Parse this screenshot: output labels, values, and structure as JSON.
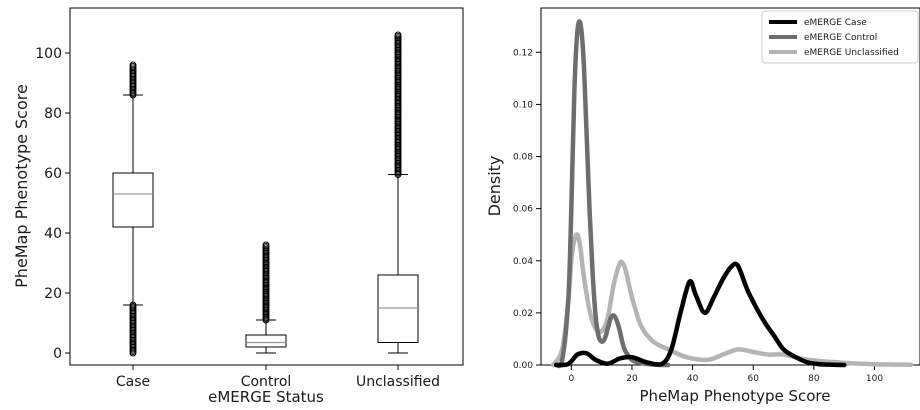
{
  "chart_data": [
    {
      "type": "box",
      "xlabel": "eMERGE Status",
      "ylabel": "PheMap Phenotype Score",
      "categories": [
        "Case",
        "Control",
        "Unclassified"
      ],
      "ylim": [
        -4,
        115
      ],
      "yticks": [
        0,
        20,
        40,
        60,
        80,
        100
      ],
      "boxes": [
        {
          "name": "Case",
          "whislo": 16,
          "q1": 42,
          "med": 53,
          "q3": 60,
          "whishi": 86,
          "fliers_low_range": [
            0,
            16
          ],
          "fliers_high_range": [
            86,
            96
          ]
        },
        {
          "name": "Control",
          "whislo": 0,
          "q1": 2,
          "med": 3.5,
          "q3": 6,
          "whishi": 11,
          "fliers_low_range": null,
          "fliers_high_range": [
            11,
            36
          ]
        },
        {
          "name": "Unclassified",
          "whislo": 0,
          "q1": 3.5,
          "med": 15,
          "q3": 26,
          "whishi": 59.5,
          "fliers_low_range": null,
          "fliers_high_range": [
            59.5,
            106
          ]
        }
      ]
    },
    {
      "type": "line",
      "xlabel": "PheMap Phenotype Score",
      "ylabel": "Density",
      "xlim": [
        -10,
        115
      ],
      "ylim": [
        0,
        0.137
      ],
      "xticks": [
        0,
        20,
        40,
        60,
        80,
        100
      ],
      "yticks": [
        0.0,
        0.02,
        0.04,
        0.06,
        0.08,
        0.1,
        0.12
      ],
      "legend_position": "top-right",
      "series": [
        {
          "name": "eMERGE Case",
          "color": "#000000",
          "x": [
            -5,
            -1,
            2,
            5,
            8,
            12,
            16,
            20,
            25,
            30,
            33,
            36,
            39,
            41,
            44,
            47,
            50,
            53,
            55,
            58,
            61,
            64,
            67,
            70,
            74,
            78,
            82,
            86,
            90
          ],
          "y": [
            0.0,
            0.0004,
            0.004,
            0.0045,
            0.002,
            0.0005,
            0.0025,
            0.003,
            0.001,
            0.0005,
            0.006,
            0.02,
            0.032,
            0.027,
            0.02,
            0.026,
            0.033,
            0.038,
            0.038,
            0.029,
            0.022,
            0.016,
            0.011,
            0.006,
            0.003,
            0.001,
            0.0003,
            0.0001,
            0.0
          ]
        },
        {
          "name": "eMERGE Control",
          "color": "#6e6e6e",
          "x": [
            -5,
            -3,
            -1,
            0,
            1,
            2,
            3,
            4,
            5,
            6,
            7,
            8,
            9,
            10,
            11,
            12,
            13,
            14,
            15,
            16,
            17,
            18,
            20,
            22,
            25,
            28,
            32
          ],
          "y": [
            0.0,
            0.002,
            0.025,
            0.06,
            0.105,
            0.128,
            0.131,
            0.118,
            0.09,
            0.06,
            0.036,
            0.019,
            0.011,
            0.009,
            0.01,
            0.014,
            0.018,
            0.019,
            0.017,
            0.013,
            0.008,
            0.005,
            0.002,
            0.001,
            0.0004,
            0.0001,
            0.0
          ]
        },
        {
          "name": "eMERGE Unclassified",
          "color": "#b4b4b4",
          "x": [
            -6,
            -3,
            -1,
            0,
            1,
            2,
            3,
            4,
            6,
            8,
            10,
            12,
            14,
            16,
            17,
            18,
            20,
            23,
            27,
            32,
            38,
            45,
            50,
            55,
            60,
            65,
            70,
            78,
            90,
            100,
            112
          ],
          "y": [
            0.0,
            0.006,
            0.025,
            0.04,
            0.048,
            0.05,
            0.045,
            0.035,
            0.021,
            0.014,
            0.013,
            0.018,
            0.031,
            0.039,
            0.039,
            0.036,
            0.026,
            0.015,
            0.009,
            0.006,
            0.003,
            0.002,
            0.004,
            0.006,
            0.005,
            0.004,
            0.004,
            0.002,
            0.0008,
            0.0003,
            0.0001
          ]
        }
      ]
    }
  ]
}
